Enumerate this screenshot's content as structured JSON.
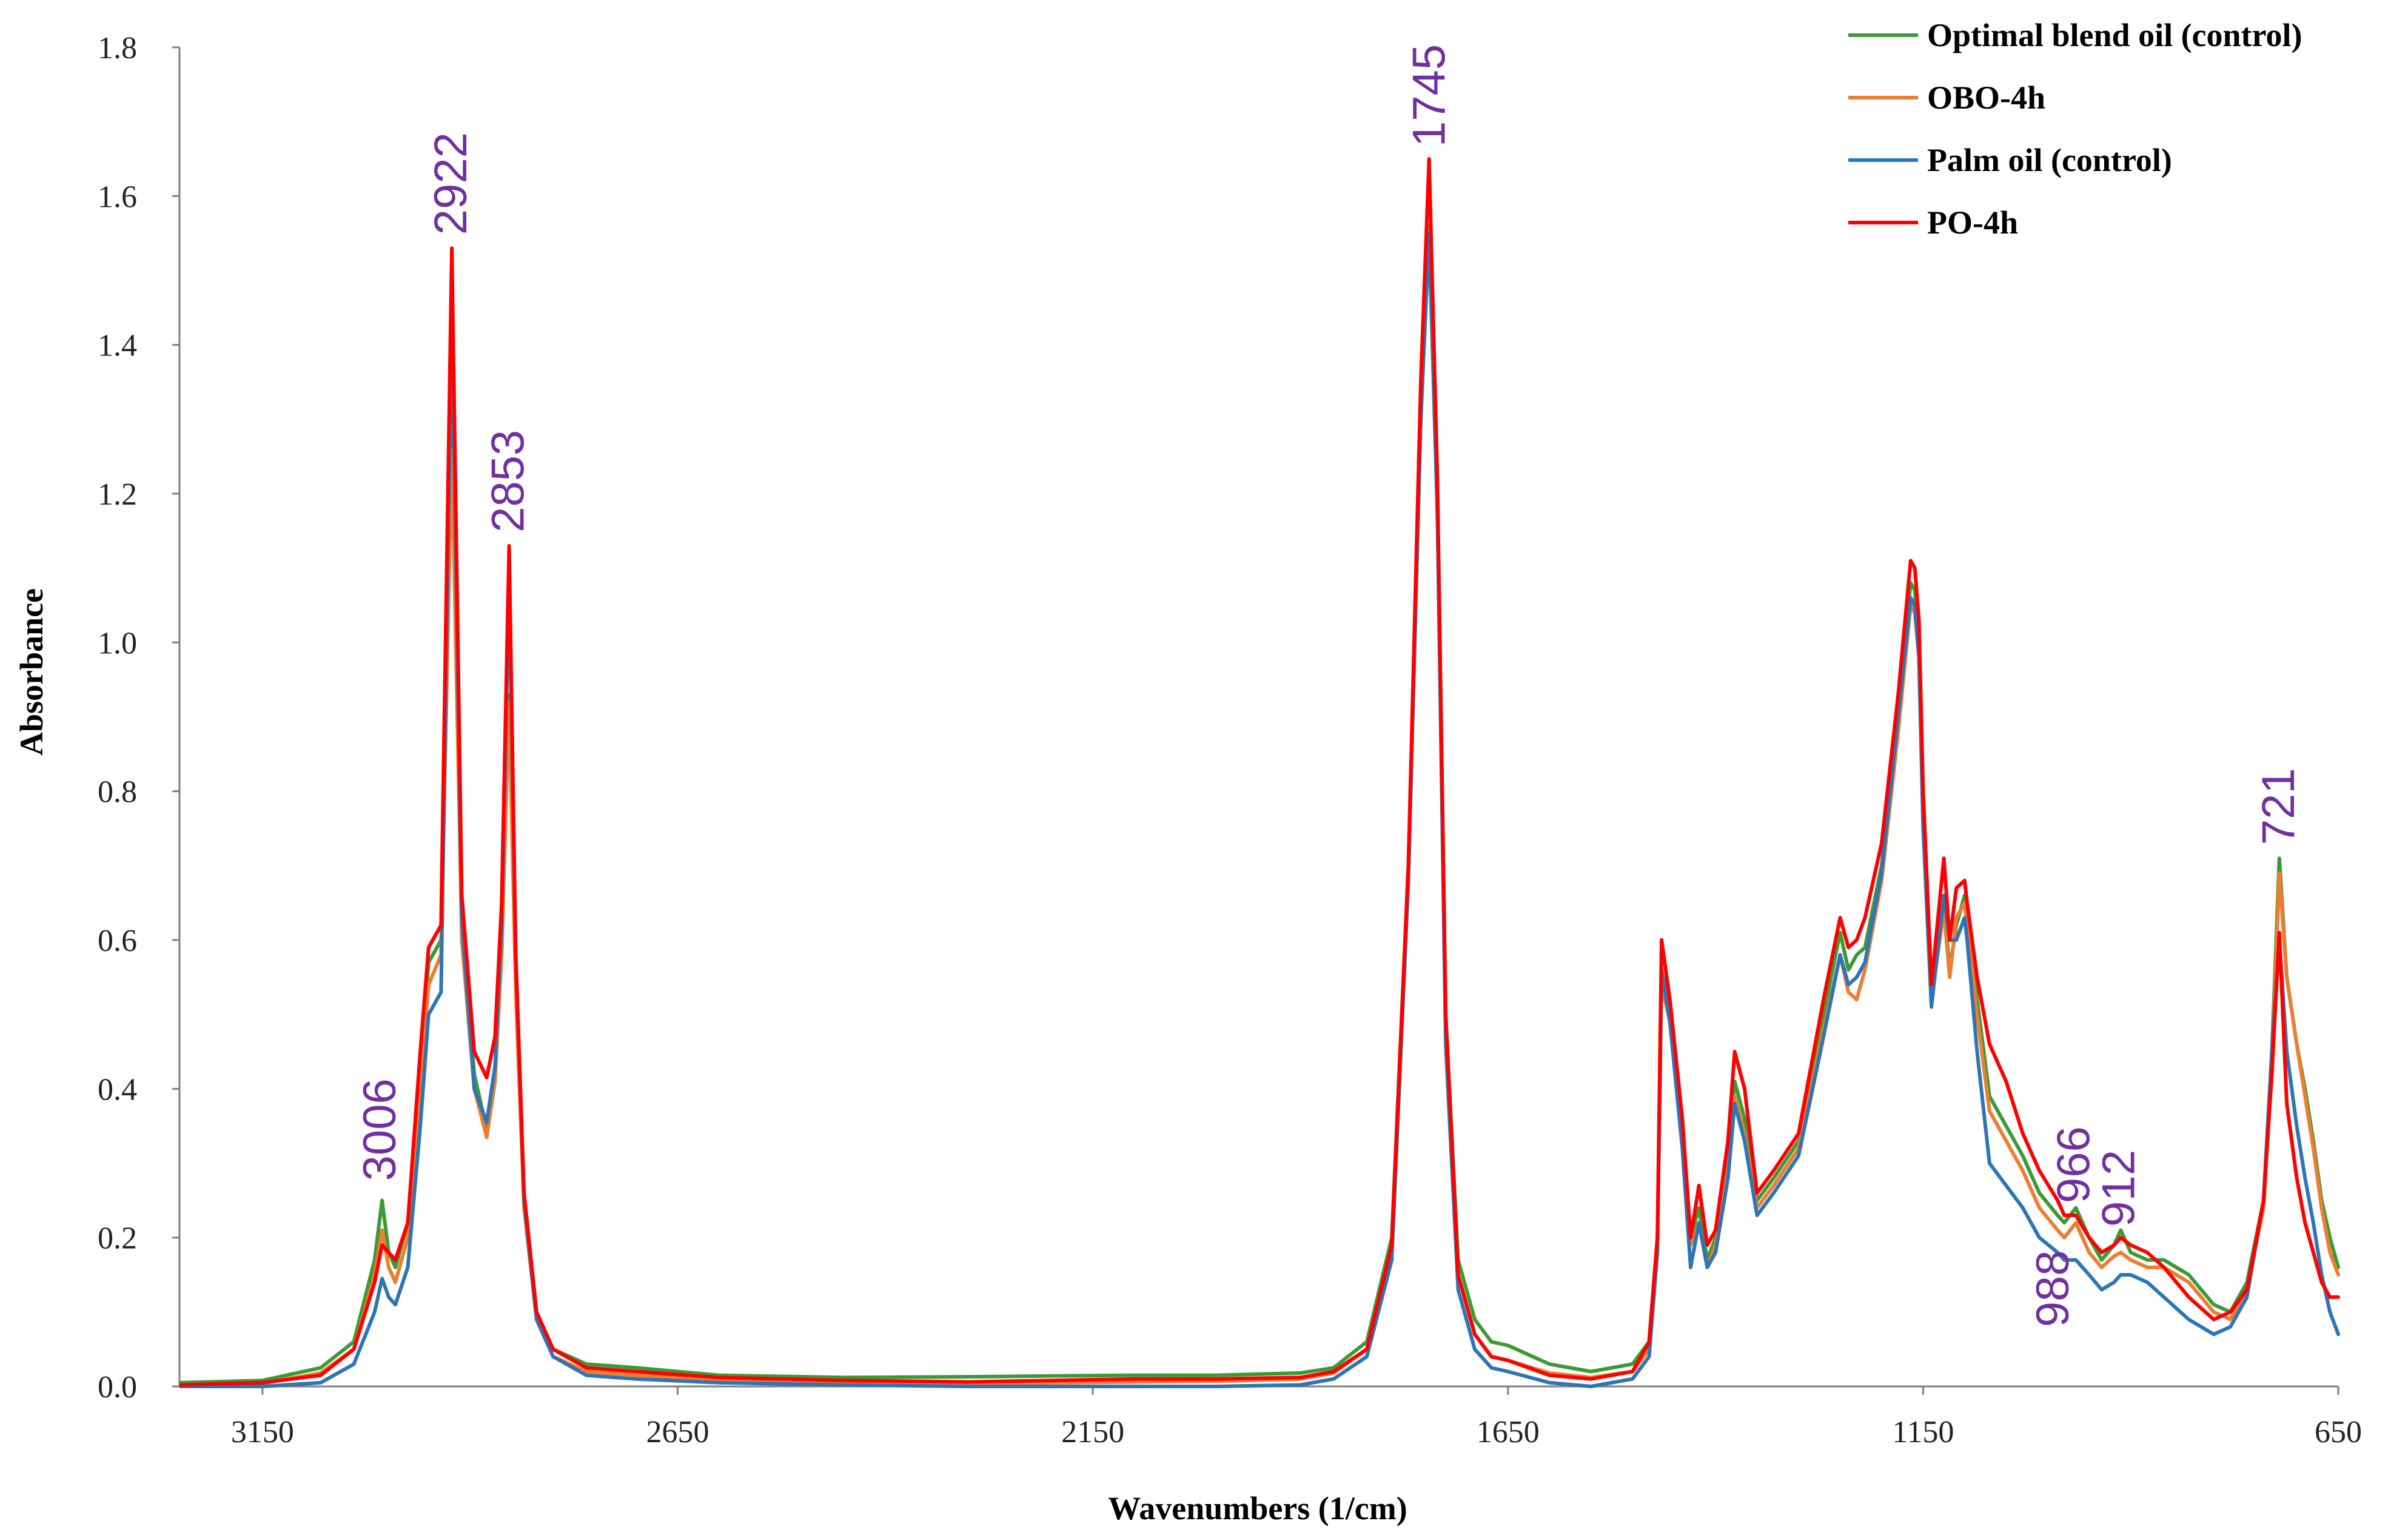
{
  "chart_data": {
    "type": "line",
    "title": "",
    "xlabel": "Wavenumbers (1/cm)",
    "ylabel": "Absorbance",
    "xlim": [
      3250,
      650
    ],
    "ylim": [
      0,
      1.8
    ],
    "x_ticks": [
      "3150",
      "2650",
      "2150",
      "1650",
      "1150",
      "650"
    ],
    "y_ticks": [
      "0.0",
      "0.2",
      "0.4",
      "0.6",
      "0.8",
      "1.0",
      "1.2",
      "1.4",
      "1.6",
      "1.8"
    ],
    "grid": false,
    "legend_position": "top-right",
    "peak_annotations": [
      {
        "label": "3006",
        "x": 3006,
        "y": 0.25
      },
      {
        "label": "2922",
        "x": 2922,
        "y": 1.53
      },
      {
        "label": "2853",
        "x": 2853,
        "y": 1.13
      },
      {
        "label": "1745",
        "x": 1745,
        "y": 1.65
      },
      {
        "label": "988",
        "x": 988,
        "y": 0.0
      },
      {
        "label": "966",
        "x": 966,
        "y": 0.23
      },
      {
        "label": "912",
        "x": 912,
        "y": 0.2
      },
      {
        "label": "721",
        "x": 721,
        "y": 0.71
      }
    ],
    "series": [
      {
        "name": "Optimal blend oil (control)",
        "color": "#3a9b35",
        "x": [
          3250,
          3150,
          3080,
          3040,
          3015,
          3006,
          2998,
          2990,
          2975,
          2960,
          2950,
          2935,
          2922,
          2910,
          2895,
          2880,
          2870,
          2862,
          2853,
          2845,
          2835,
          2820,
          2800,
          2760,
          2700,
          2600,
          2450,
          2300,
          2200,
          2100,
          2000,
          1900,
          1860,
          1820,
          1790,
          1770,
          1755,
          1745,
          1735,
          1725,
          1710,
          1690,
          1670,
          1650,
          1600,
          1550,
          1500,
          1480,
          1470,
          1465,
          1455,
          1440,
          1430,
          1420,
          1410,
          1400,
          1385,
          1377,
          1365,
          1350,
          1330,
          1300,
          1270,
          1250,
          1240,
          1230,
          1220,
          1200,
          1180,
          1165,
          1160,
          1155,
          1150,
          1140,
          1125,
          1118,
          1110,
          1100,
          1097,
          1085,
          1070,
          1050,
          1030,
          1010,
          988,
          980,
          966,
          950,
          935,
          920,
          912,
          900,
          880,
          860,
          830,
          800,
          780,
          760,
          740,
          730,
          721,
          712,
          700,
          690,
          680,
          670,
          660,
          650
        ],
        "values": [
          0.005,
          0.008,
          0.025,
          0.06,
          0.17,
          0.25,
          0.18,
          0.16,
          0.22,
          0.42,
          0.57,
          0.6,
          1.31,
          0.62,
          0.42,
          0.345,
          0.42,
          0.6,
          0.93,
          0.55,
          0.25,
          0.1,
          0.05,
          0.03,
          0.025,
          0.015,
          0.012,
          0.013,
          0.014,
          0.015,
          0.015,
          0.018,
          0.025,
          0.06,
          0.2,
          0.7,
          1.3,
          1.55,
          1.2,
          0.5,
          0.17,
          0.09,
          0.06,
          0.055,
          0.03,
          0.02,
          0.03,
          0.06,
          0.2,
          0.56,
          0.5,
          0.34,
          0.2,
          0.24,
          0.17,
          0.2,
          0.3,
          0.41,
          0.36,
          0.25,
          0.28,
          0.33,
          0.5,
          0.61,
          0.56,
          0.58,
          0.59,
          0.7,
          0.9,
          1.08,
          1.07,
          1.0,
          0.8,
          0.53,
          0.65,
          0.56,
          0.62,
          0.66,
          0.64,
          0.52,
          0.39,
          0.35,
          0.31,
          0.26,
          0.23,
          0.22,
          0.24,
          0.2,
          0.17,
          0.19,
          0.21,
          0.18,
          0.17,
          0.17,
          0.15,
          0.11,
          0.1,
          0.14,
          0.25,
          0.45,
          0.71,
          0.55,
          0.46,
          0.4,
          0.33,
          0.25,
          0.2,
          0.16
        ]
      },
      {
        "name": "OBO-4h",
        "color": "#ed7d31",
        "x": [
          3250,
          3150,
          3080,
          3040,
          3015,
          3006,
          2998,
          2990,
          2975,
          2960,
          2950,
          2935,
          2922,
          2910,
          2895,
          2880,
          2870,
          2862,
          2853,
          2845,
          2835,
          2820,
          2800,
          2760,
          2700,
          2600,
          2450,
          2300,
          2200,
          2100,
          2000,
          1900,
          1860,
          1820,
          1790,
          1770,
          1755,
          1745,
          1735,
          1725,
          1710,
          1690,
          1670,
          1650,
          1600,
          1550,
          1500,
          1480,
          1470,
          1465,
          1455,
          1440,
          1430,
          1420,
          1410,
          1400,
          1385,
          1377,
          1365,
          1350,
          1330,
          1300,
          1270,
          1250,
          1240,
          1230,
          1220,
          1200,
          1180,
          1165,
          1160,
          1155,
          1150,
          1140,
          1125,
          1118,
          1110,
          1100,
          1097,
          1085,
          1070,
          1050,
          1030,
          1010,
          988,
          980,
          966,
          950,
          935,
          920,
          912,
          900,
          880,
          860,
          830,
          800,
          780,
          760,
          740,
          730,
          721,
          712,
          700,
          690,
          680,
          670,
          660,
          650
        ],
        "values": [
          0.002,
          0.004,
          0.018,
          0.05,
          0.15,
          0.21,
          0.16,
          0.14,
          0.2,
          0.4,
          0.54,
          0.58,
          1.26,
          0.6,
          0.4,
          0.335,
          0.41,
          0.58,
          0.92,
          0.53,
          0.24,
          0.09,
          0.04,
          0.02,
          0.015,
          0.008,
          0.005,
          0.004,
          0.005,
          0.006,
          0.007,
          0.01,
          0.018,
          0.05,
          0.18,
          0.68,
          1.3,
          1.56,
          1.18,
          0.48,
          0.15,
          0.07,
          0.04,
          0.035,
          0.018,
          0.012,
          0.02,
          0.05,
          0.18,
          0.54,
          0.49,
          0.33,
          0.19,
          0.22,
          0.16,
          0.19,
          0.29,
          0.39,
          0.34,
          0.24,
          0.27,
          0.32,
          0.48,
          0.58,
          0.53,
          0.52,
          0.56,
          0.68,
          0.88,
          1.05,
          1.04,
          0.98,
          0.78,
          0.52,
          0.64,
          0.55,
          0.63,
          0.65,
          0.62,
          0.5,
          0.37,
          0.33,
          0.29,
          0.24,
          0.21,
          0.2,
          0.22,
          0.18,
          0.16,
          0.175,
          0.18,
          0.17,
          0.16,
          0.16,
          0.14,
          0.1,
          0.09,
          0.13,
          0.24,
          0.43,
          0.69,
          0.55,
          0.46,
          0.39,
          0.32,
          0.24,
          0.18,
          0.15
        ]
      },
      {
        "name": "Palm oil (control)",
        "color": "#2e75b6",
        "x": [
          3250,
          3150,
          3080,
          3040,
          3015,
          3006,
          2998,
          2990,
          2975,
          2960,
          2950,
          2935,
          2922,
          2910,
          2895,
          2880,
          2870,
          2862,
          2853,
          2845,
          2835,
          2820,
          2800,
          2760,
          2700,
          2600,
          2450,
          2300,
          2200,
          2100,
          2000,
          1900,
          1860,
          1820,
          1790,
          1770,
          1755,
          1745,
          1735,
          1725,
          1710,
          1690,
          1670,
          1650,
          1600,
          1550,
          1500,
          1480,
          1470,
          1465,
          1455,
          1440,
          1430,
          1420,
          1410,
          1400,
          1385,
          1377,
          1365,
          1350,
          1330,
          1300,
          1270,
          1250,
          1240,
          1230,
          1220,
          1200,
          1180,
          1165,
          1160,
          1155,
          1150,
          1140,
          1125,
          1118,
          1110,
          1100,
          1097,
          1085,
          1070,
          1050,
          1030,
          1010,
          988,
          980,
          966,
          950,
          935,
          920,
          912,
          900,
          880,
          860,
          830,
          800,
          780,
          760,
          740,
          730,
          721,
          712,
          700,
          690,
          680,
          670,
          660,
          650
        ],
        "values": [
          0.0,
          0.0,
          0.005,
          0.03,
          0.1,
          0.145,
          0.12,
          0.11,
          0.16,
          0.35,
          0.5,
          0.53,
          1.45,
          0.63,
          0.4,
          0.355,
          0.43,
          0.62,
          1.08,
          0.58,
          0.25,
          0.09,
          0.04,
          0.015,
          0.01,
          0.005,
          0.002,
          0.0,
          0.0,
          0.0,
          0.0,
          0.002,
          0.01,
          0.04,
          0.17,
          0.68,
          1.3,
          1.55,
          1.17,
          0.46,
          0.13,
          0.05,
          0.025,
          0.02,
          0.005,
          0.0,
          0.01,
          0.04,
          0.18,
          0.56,
          0.49,
          0.32,
          0.16,
          0.22,
          0.16,
          0.18,
          0.28,
          0.38,
          0.33,
          0.23,
          0.26,
          0.31,
          0.47,
          0.58,
          0.54,
          0.55,
          0.57,
          0.69,
          0.9,
          1.06,
          1.05,
          0.98,
          0.75,
          0.51,
          0.66,
          0.6,
          0.6,
          0.63,
          0.6,
          0.45,
          0.3,
          0.27,
          0.24,
          0.2,
          0.18,
          0.17,
          0.17,
          0.15,
          0.13,
          0.14,
          0.15,
          0.15,
          0.14,
          0.12,
          0.09,
          0.07,
          0.08,
          0.12,
          0.25,
          0.45,
          0.6,
          0.45,
          0.35,
          0.28,
          0.22,
          0.15,
          0.1,
          0.07
        ]
      },
      {
        "name": "PO-4h",
        "color": "#ff0000",
        "x": [
          3250,
          3150,
          3080,
          3040,
          3015,
          3006,
          2998,
          2990,
          2975,
          2960,
          2950,
          2935,
          2922,
          2910,
          2895,
          2880,
          2870,
          2862,
          2853,
          2845,
          2835,
          2820,
          2800,
          2760,
          2700,
          2600,
          2450,
          2300,
          2200,
          2100,
          2000,
          1900,
          1860,
          1820,
          1790,
          1770,
          1755,
          1745,
          1735,
          1725,
          1710,
          1690,
          1670,
          1650,
          1600,
          1550,
          1500,
          1480,
          1470,
          1465,
          1455,
          1440,
          1430,
          1420,
          1410,
          1400,
          1385,
          1377,
          1365,
          1350,
          1330,
          1300,
          1270,
          1250,
          1240,
          1230,
          1220,
          1200,
          1180,
          1165,
          1160,
          1155,
          1150,
          1140,
          1125,
          1118,
          1110,
          1100,
          1097,
          1085,
          1070,
          1050,
          1030,
          1010,
          988,
          980,
          966,
          950,
          935,
          920,
          912,
          900,
          880,
          860,
          830,
          800,
          780,
          760,
          740,
          730,
          721,
          712,
          700,
          690,
          680,
          670,
          660,
          650
        ],
        "values": [
          0.002,
          0.005,
          0.015,
          0.05,
          0.14,
          0.19,
          0.18,
          0.17,
          0.22,
          0.45,
          0.59,
          0.62,
          1.53,
          0.66,
          0.45,
          0.415,
          0.47,
          0.65,
          1.13,
          0.58,
          0.26,
          0.1,
          0.05,
          0.025,
          0.02,
          0.012,
          0.008,
          0.006,
          0.008,
          0.01,
          0.01,
          0.012,
          0.02,
          0.05,
          0.19,
          0.7,
          1.35,
          1.65,
          1.22,
          0.5,
          0.15,
          0.07,
          0.04,
          0.035,
          0.015,
          0.01,
          0.02,
          0.06,
          0.2,
          0.6,
          0.52,
          0.36,
          0.2,
          0.27,
          0.19,
          0.21,
          0.33,
          0.45,
          0.4,
          0.26,
          0.29,
          0.34,
          0.52,
          0.63,
          0.59,
          0.6,
          0.63,
          0.73,
          0.93,
          1.11,
          1.1,
          1.03,
          0.8,
          0.54,
          0.71,
          0.6,
          0.67,
          0.68,
          0.65,
          0.55,
          0.46,
          0.41,
          0.34,
          0.29,
          0.25,
          0.23,
          0.23,
          0.2,
          0.18,
          0.19,
          0.2,
          0.19,
          0.18,
          0.16,
          0.12,
          0.09,
          0.1,
          0.13,
          0.25,
          0.42,
          0.61,
          0.38,
          0.28,
          0.22,
          0.18,
          0.14,
          0.12,
          0.12
        ]
      }
    ]
  }
}
